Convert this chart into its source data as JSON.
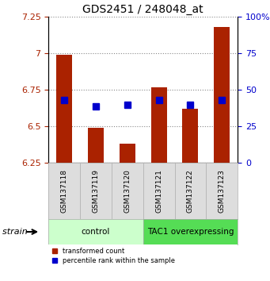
{
  "title": "GDS2451 / 248048_at",
  "samples": [
    "GSM137118",
    "GSM137119",
    "GSM137120",
    "GSM137121",
    "GSM137122",
    "GSM137123"
  ],
  "red_values": [
    6.99,
    6.49,
    6.38,
    6.77,
    6.62,
    7.18
  ],
  "blue_values": [
    6.68,
    6.64,
    6.65,
    6.68,
    6.65,
    6.68
  ],
  "ylim_left": [
    6.25,
    7.25
  ],
  "ylim_right": [
    0,
    100
  ],
  "yticks_left": [
    6.25,
    6.5,
    6.75,
    7.0,
    7.25
  ],
  "yticks_right": [
    0,
    25,
    50,
    75,
    100
  ],
  "ytick_labels_left": [
    "6.25",
    "6.5",
    "6.75",
    "7",
    "7.25"
  ],
  "ytick_labels_right": [
    "0",
    "25",
    "50",
    "75",
    "100%"
  ],
  "red_color": "#aa2200",
  "blue_color": "#0000cc",
  "bar_bottom": 6.25,
  "groups": [
    {
      "label": "control",
      "samples": [
        0,
        1,
        2
      ],
      "color": "#ccffcc"
    },
    {
      "label": "TAC1 overexpressing",
      "samples": [
        3,
        4,
        5
      ],
      "color": "#55dd55"
    }
  ],
  "group_label": "strain",
  "legend_red": "transformed count",
  "legend_blue": "percentile rank within the sample",
  "bar_width": 0.5,
  "blue_marker_size": 6,
  "grid_color": "#888888",
  "plot_bg": "#ffffff",
  "outer_bg": "#ffffff"
}
